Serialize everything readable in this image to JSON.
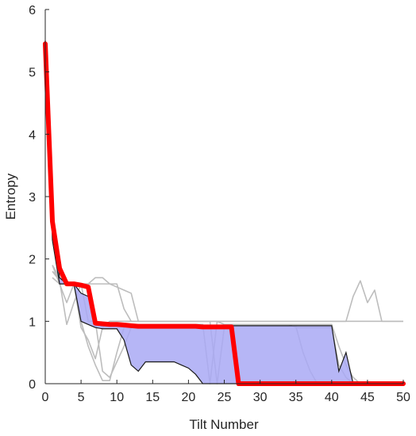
{
  "chart_data": {
    "type": "line",
    "title": "",
    "xlabel": "Tilt Number",
    "ylabel": "Entropy",
    "xlim": [
      0,
      50
    ],
    "ylim": [
      0,
      6
    ],
    "xticks": [
      0,
      5,
      10,
      15,
      20,
      25,
      30,
      35,
      40,
      45,
      50
    ],
    "yticks": [
      0,
      1,
      2,
      3,
      4,
      5,
      6
    ],
    "grid": false,
    "legend": "none",
    "colors": {
      "mean_line": "#ff0000",
      "band_fill": "#a9a9f5",
      "band_edge": "#1a1a1a",
      "individual_runs": "#bdbdbd"
    },
    "band": {
      "x": [
        0,
        1,
        2,
        3,
        4,
        5,
        6,
        7,
        8,
        9,
        10,
        11,
        12,
        13,
        14,
        15,
        16,
        17,
        18,
        19,
        20,
        21,
        22,
        23,
        24,
        25,
        26,
        27,
        28,
        29,
        30,
        31,
        32,
        33,
        34,
        35,
        36,
        37,
        38,
        39,
        40,
        41,
        42,
        43
      ],
      "upper": [
        5.5,
        2.6,
        1.7,
        1.6,
        1.6,
        1.45,
        1.4,
        0.95,
        0.93,
        0.93,
        0.93,
        0.93,
        0.93,
        0.93,
        0.93,
        0.93,
        0.93,
        0.93,
        0.93,
        0.93,
        0.93,
        0.93,
        0.93,
        0.93,
        0.93,
        0.93,
        0.93,
        0.93,
        0.93,
        0.93,
        0.93,
        0.93,
        0.93,
        0.93,
        0.93,
        0.93,
        0.93,
        0.93,
        0.93,
        0.93,
        0.93,
        0.2,
        0.5,
        0
      ],
      "lower": [
        5.5,
        2.3,
        1.6,
        1.6,
        1.6,
        1.0,
        0.95,
        0.9,
        0.88,
        0.88,
        0.88,
        0.7,
        0.3,
        0.2,
        0.35,
        0.35,
        0.35,
        0.35,
        0.35,
        0.3,
        0.25,
        0.15,
        0,
        0,
        0,
        0,
        0,
        0,
        0,
        0,
        0,
        0,
        0,
        0,
        0,
        0,
        0,
        0,
        0,
        0,
        0,
        0,
        0,
        0
      ]
    },
    "series": [
      {
        "x": [
          0,
          1,
          2,
          3,
          4,
          5,
          6,
          7,
          8,
          9,
          10,
          11,
          12,
          13,
          14,
          15,
          16,
          17,
          18,
          19,
          20,
          21,
          22,
          23,
          24,
          25,
          26,
          27,
          28,
          29,
          30,
          31,
          32,
          33,
          34,
          35,
          36,
          37,
          38,
          39,
          40,
          41,
          42,
          43,
          44,
          45,
          46,
          47,
          48,
          49,
          50
        ],
        "values": [
          5.45,
          2.6,
          1.85,
          1.6,
          1.6,
          1.58,
          1.55,
          0.97,
          0.96,
          0.95,
          0.95,
          0.94,
          0.93,
          0.92,
          0.92,
          0.92,
          0.92,
          0.92,
          0.92,
          0.92,
          0.92,
          0.92,
          0.91,
          0.91,
          0.91,
          0.91,
          0.91,
          0.0,
          0,
          0,
          0,
          0,
          0,
          0,
          0,
          0,
          0,
          0,
          0,
          0,
          0,
          0,
          0,
          0,
          0,
          0,
          0,
          0,
          0,
          0,
          0
        ]
      }
    ],
    "runs": [
      {
        "x": [
          1,
          2,
          3,
          4,
          5,
          6,
          7,
          8,
          9,
          10,
          11,
          12,
          13,
          14,
          15,
          16,
          17,
          18,
          19,
          20,
          21,
          22,
          23,
          24,
          25,
          26,
          27,
          28,
          29,
          30,
          31,
          32,
          33,
          34,
          35,
          36,
          37,
          38,
          39,
          40,
          41,
          42,
          43,
          44,
          45,
          46,
          47,
          48,
          49,
          50
        ],
        "values": [
          1.9,
          1.7,
          1.6,
          1.6,
          1.55,
          1.6,
          1.6,
          1.6,
          1.6,
          1.6,
          1.2,
          1.0,
          1.0,
          1.0,
          1.0,
          1.0,
          1.0,
          1.0,
          1.0,
          1.0,
          1.0,
          1.0,
          1.0,
          1.0,
          1.0,
          1.0,
          1.0,
          1.0,
          1.0,
          1.0,
          1.0,
          1.0,
          1.0,
          1.0,
          1.0,
          1.0,
          1.0,
          1.0,
          1.0,
          1.0,
          1.0,
          1.0,
          1.4,
          1.65,
          1.3,
          1.5,
          1.0,
          1.0,
          1.0,
          1.0
        ]
      },
      {
        "x": [
          1,
          2,
          3,
          4,
          5,
          6,
          7,
          8,
          9,
          10,
          11,
          12,
          13,
          14,
          15,
          16,
          17,
          18,
          19,
          20,
          21,
          22,
          23,
          24,
          25,
          26,
          27,
          28,
          29,
          30,
          31,
          32,
          33,
          34,
          35,
          36,
          37,
          38,
          39,
          40,
          41,
          42,
          43,
          44,
          45,
          46,
          47,
          48,
          49,
          50
        ],
        "values": [
          1.8,
          1.65,
          0.95,
          1.3,
          1.6,
          1.6,
          1.7,
          1.7,
          1.6,
          1.55,
          1.5,
          1.45,
          1.0,
          1.0,
          1.0,
          1.0,
          1.0,
          1.0,
          1.0,
          1.0,
          1.0,
          1.0,
          1.0,
          1.0,
          1.0,
          1.0,
          1.0,
          1.0,
          1.0,
          1.0,
          1.0,
          1.0,
          1.0,
          1.0,
          1.0,
          1.0,
          1.0,
          1.0,
          1.0,
          1.0,
          1.0,
          1.0,
          1.0,
          1.0,
          1.0,
          1.0,
          1.0,
          1.0,
          1.0,
          1.0
        ]
      },
      {
        "x": [
          1,
          2,
          3,
          4,
          5,
          6,
          7,
          8,
          9,
          10,
          11,
          12,
          13,
          14,
          15,
          16,
          17,
          18,
          19,
          20,
          21,
          22,
          23,
          24,
          25,
          26,
          27,
          28,
          29,
          30,
          31,
          32,
          33,
          34,
          35,
          36,
          37,
          38,
          39,
          40,
          41,
          42,
          43,
          44
        ],
        "values": [
          1.8,
          1.7,
          1.6,
          1.6,
          1.0,
          0.6,
          0.3,
          0.05,
          0.05,
          0.5,
          0.9,
          0.95,
          0.95,
          0.95,
          0.95,
          0.95,
          0.95,
          0.95,
          0.95,
          0.95,
          0.95,
          0.95,
          0.0,
          1.0,
          0.95,
          0.95,
          0.95,
          0.95,
          0.95,
          0.95,
          0.95,
          0.95,
          0.95,
          0.95,
          0.95,
          0.95,
          0.95,
          0.95,
          0.95,
          0.95,
          0.6,
          0.3,
          0.1,
          0.0
        ]
      },
      {
        "x": [
          1,
          2,
          3,
          4,
          5,
          6,
          7,
          8,
          9,
          10,
          11,
          12,
          13,
          14,
          15,
          16,
          17,
          18,
          19,
          20,
          21,
          22,
          23,
          24,
          25,
          26,
          27,
          28,
          29,
          30,
          31,
          32,
          33,
          34,
          35,
          36,
          37,
          38,
          39,
          40,
          41,
          42,
          43
        ],
        "values": [
          1.7,
          1.6,
          1.3,
          1.6,
          0.9,
          0.7,
          0.4,
          0.9,
          1.0,
          1.0,
          1.0,
          1.0,
          1.0,
          1.0,
          1.0,
          1.0,
          1.0,
          1.0,
          1.0,
          1.0,
          1.0,
          1.0,
          1.0,
          0.0,
          0.9,
          0.95,
          0.95,
          0.95,
          0.95,
          0.95,
          0.95,
          0.95,
          0.95,
          0.95,
          0.9,
          0.9,
          0.9,
          0.9,
          0.9,
          0.9,
          0.3,
          0.1,
          0.0
        ]
      },
      {
        "x": [
          1,
          2,
          3,
          4,
          5,
          6,
          7,
          8,
          9,
          10,
          11,
          12,
          13,
          14,
          15,
          16,
          17,
          18,
          19,
          20,
          21,
          22,
          23,
          24,
          25,
          26,
          27,
          28,
          29,
          30,
          31,
          32,
          33,
          34,
          35,
          36,
          37,
          38
        ],
        "values": [
          1.9,
          1.6,
          1.6,
          1.6,
          1.6,
          1.0,
          1.0,
          0.2,
          0.1,
          0.35,
          0.6,
          0.9,
          0.92,
          0.92,
          0.92,
          0.92,
          0.92,
          0.92,
          0.92,
          0.92,
          0.92,
          0.92,
          0.92,
          0.92,
          0.92,
          0.92,
          0.92,
          0.92,
          0.92,
          0.92,
          0.92,
          0.92,
          0.92,
          0.92,
          0.92,
          0.5,
          0.2,
          0.0
        ]
      }
    ]
  }
}
